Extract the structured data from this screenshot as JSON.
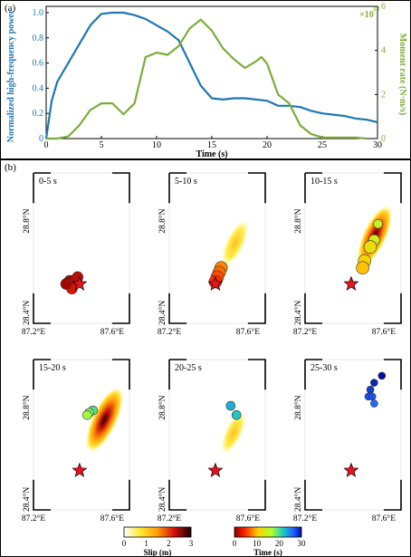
{
  "panel_a": {
    "label": "(a)",
    "chart_data": {
      "type": "line",
      "xlabel": "Time (s)",
      "xlim": [
        0,
        30
      ],
      "x_ticks": [
        "0",
        "5",
        "10",
        "15",
        "20",
        "25",
        "30"
      ],
      "y_left": {
        "label": "Normalized high-frequency power",
        "lim": [
          0,
          1.05
        ],
        "ticks": [
          "0",
          "0.2",
          "0.4",
          "0.6",
          "0.8",
          "1.0"
        ],
        "color": "#1f77b4"
      },
      "y_right": {
        "label": "Moment rate (N·m/s)",
        "multiplier": "×10",
        "exponent": "18",
        "lim": [
          0,
          6
        ],
        "ticks": [
          "0",
          "2",
          "4",
          "6"
        ],
        "color": "#7cad3a"
      },
      "series": [
        {
          "axis": "left",
          "color": "#1f77b4",
          "x": [
            0,
            0.5,
            1,
            2,
            3,
            4,
            5,
            6,
            7,
            8,
            9,
            10,
            11,
            12,
            13,
            14,
            15,
            16,
            17,
            18,
            19,
            20,
            21,
            22,
            23,
            24,
            25,
            26,
            27,
            28,
            29,
            30
          ],
          "y": [
            0,
            0.3,
            0.45,
            0.6,
            0.75,
            0.9,
            0.99,
            1.0,
            1.0,
            0.98,
            0.95,
            0.9,
            0.85,
            0.78,
            0.6,
            0.42,
            0.32,
            0.31,
            0.32,
            0.32,
            0.31,
            0.3,
            0.26,
            0.26,
            0.25,
            0.22,
            0.2,
            0.19,
            0.18,
            0.16,
            0.15,
            0.13
          ]
        },
        {
          "axis": "right",
          "color": "#7cad3a",
          "x": [
            0,
            1,
            2,
            3,
            4,
            5,
            6,
            7,
            8,
            9,
            10,
            11,
            12,
            13,
            14,
            15,
            16,
            17,
            18,
            19,
            19.5,
            20,
            21,
            22,
            23,
            24,
            25,
            26,
            27,
            28,
            29
          ],
          "y": [
            0,
            0,
            0.1,
            0.6,
            1.3,
            1.6,
            1.6,
            1.1,
            1.6,
            3.7,
            3.9,
            3.8,
            4.2,
            5.0,
            5.4,
            4.9,
            4.1,
            3.6,
            3.2,
            3.5,
            3.7,
            3.4,
            2.0,
            1.6,
            0.6,
            0.2,
            0.05,
            0.05,
            0.05,
            0.05,
            0
          ]
        }
      ]
    }
  },
  "panel_b": {
    "label": "(b)",
    "lon_ticks": [
      "87.2°E",
      "87.6°E"
    ],
    "lat_ticks": [
      "28.8°N",
      "28.4°N"
    ],
    "epicenter_color": "#e8141c",
    "maps": [
      {
        "time_window": "0-5 s",
        "patch_level": 0.0,
        "points": [
          {
            "lon": 87.39,
            "lat": 28.53,
            "time_s": 1,
            "size": 7
          },
          {
            "lon": 87.42,
            "lat": 28.53,
            "time_s": 2,
            "size": 7
          },
          {
            "lon": 87.4,
            "lat": 28.5,
            "time_s": 3,
            "size": 6
          },
          {
            "lon": 87.43,
            "lat": 28.55,
            "time_s": 2,
            "size": 6
          },
          {
            "lon": 87.37,
            "lat": 28.52,
            "time_s": 1,
            "size": 6
          }
        ]
      },
      {
        "time_window": "5-10 s",
        "patch_level": 0.45,
        "points": [
          {
            "lon": 87.47,
            "lat": 28.59,
            "time_s": 8,
            "size": 7
          },
          {
            "lon": 87.46,
            "lat": 28.57,
            "time_s": 7,
            "size": 7
          },
          {
            "lon": 87.45,
            "lat": 28.55,
            "time_s": 6,
            "size": 7
          },
          {
            "lon": 87.44,
            "lat": 28.53,
            "time_s": 5,
            "size": 7
          }
        ]
      },
      {
        "time_window": "10-15 s",
        "patch_level": 0.85,
        "points": [
          {
            "lon": 87.58,
            "lat": 28.78,
            "time_s": 15,
            "size": 5
          },
          {
            "lon": 87.56,
            "lat": 28.71,
            "time_s": 14,
            "size": 6
          },
          {
            "lon": 87.54,
            "lat": 28.68,
            "time_s": 12,
            "size": 7
          },
          {
            "lon": 87.51,
            "lat": 28.62,
            "time_s": 11,
            "size": 7
          },
          {
            "lon": 87.5,
            "lat": 28.59,
            "time_s": 10,
            "size": 7
          }
        ]
      },
      {
        "time_window": "15-20 s",
        "patch_level": 1.0,
        "points": [
          {
            "lon": 87.51,
            "lat": 28.78,
            "time_s": 20,
            "size": 5
          },
          {
            "lon": 87.49,
            "lat": 28.77,
            "time_s": 18,
            "size": 5
          },
          {
            "lon": 87.48,
            "lat": 28.76,
            "time_s": 17,
            "size": 5
          }
        ]
      },
      {
        "time_window": "20-25 s",
        "patch_level": 0.3,
        "points": [
          {
            "lon": 87.52,
            "lat": 28.8,
            "time_s": 23,
            "size": 5
          },
          {
            "lon": 87.55,
            "lat": 28.76,
            "time_s": 22,
            "size": 5
          }
        ]
      },
      {
        "time_window": "25-30 s",
        "patch_level": 0.0,
        "points": [
          {
            "lon": 87.6,
            "lat": 28.93,
            "time_s": 30,
            "size": 4
          },
          {
            "lon": 87.56,
            "lat": 28.9,
            "time_s": 29,
            "size": 4
          },
          {
            "lon": 87.54,
            "lat": 28.87,
            "time_s": 28,
            "size": 4
          },
          {
            "lon": 87.53,
            "lat": 28.84,
            "time_s": 27,
            "size": 4
          },
          {
            "lon": 87.55,
            "lat": 28.84,
            "time_s": 27,
            "size": 4
          },
          {
            "lon": 87.56,
            "lat": 28.81,
            "time_s": 26,
            "size": 4
          }
        ]
      }
    ],
    "colorbar_slip": {
      "label": "Slip (m)",
      "ticks": [
        "0",
        "1",
        "2",
        "3"
      ]
    },
    "colorbar_time": {
      "label": "Time (s)",
      "ticks": [
        "0",
        "10",
        "20",
        "30"
      ]
    }
  }
}
